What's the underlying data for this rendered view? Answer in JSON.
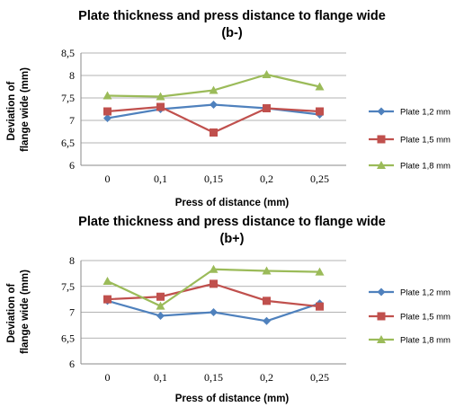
{
  "chart_data": [
    {
      "type": "line",
      "title": "Plate thickness and press distance to flange wide",
      "subtitle": "(b-)",
      "xlabel": "Press of distance (mm)",
      "ylabel": "Deviation of flange wide (mm)",
      "categories": [
        "0",
        "0,1",
        "0,15",
        "0,2",
        "0,25"
      ],
      "yticks": [
        "6",
        "6,5",
        "7",
        "7,5",
        "8",
        "8,5"
      ],
      "ylim": [
        6,
        8.5
      ],
      "grid": true,
      "legend_position": "right",
      "series": [
        {
          "name": "Plate 1,2 mm",
          "values": [
            7.05,
            7.25,
            7.35,
            7.27,
            7.13
          ],
          "color": "#4F81BD",
          "marker": "diamond"
        },
        {
          "name": "Plate 1,5 mm",
          "values": [
            7.2,
            7.3,
            6.73,
            7.27,
            7.2
          ],
          "color": "#C0504D",
          "marker": "square"
        },
        {
          "name": "Plate 1,8 mm",
          "values": [
            7.55,
            7.53,
            7.67,
            8.02,
            7.75
          ],
          "color": "#9BBB59",
          "marker": "triangle"
        }
      ]
    },
    {
      "type": "line",
      "title": "Plate thickness and press distance to flange wide",
      "subtitle": "(b+)",
      "xlabel": "Press of distance (mm)",
      "ylabel": "Deviation of flange wide (mm)",
      "categories": [
        "0",
        "0,1",
        "0,15",
        "0,2",
        "0,25"
      ],
      "yticks": [
        "6",
        "6,5",
        "7",
        "7,5",
        "8"
      ],
      "ylim": [
        6,
        8
      ],
      "grid": true,
      "legend_position": "right",
      "series": [
        {
          "name": "Plate 1,2 mm",
          "values": [
            7.22,
            6.93,
            7.0,
            6.83,
            7.17
          ],
          "color": "#4F81BD",
          "marker": "diamond"
        },
        {
          "name": "Plate 1,5 mm",
          "values": [
            7.25,
            7.3,
            7.55,
            7.22,
            7.11
          ],
          "color": "#C0504D",
          "marker": "square"
        },
        {
          "name": "Plate 1,8 mm",
          "values": [
            7.6,
            7.12,
            7.83,
            7.8,
            7.78
          ],
          "color": "#9BBB59",
          "marker": "triangle"
        }
      ]
    }
  ]
}
